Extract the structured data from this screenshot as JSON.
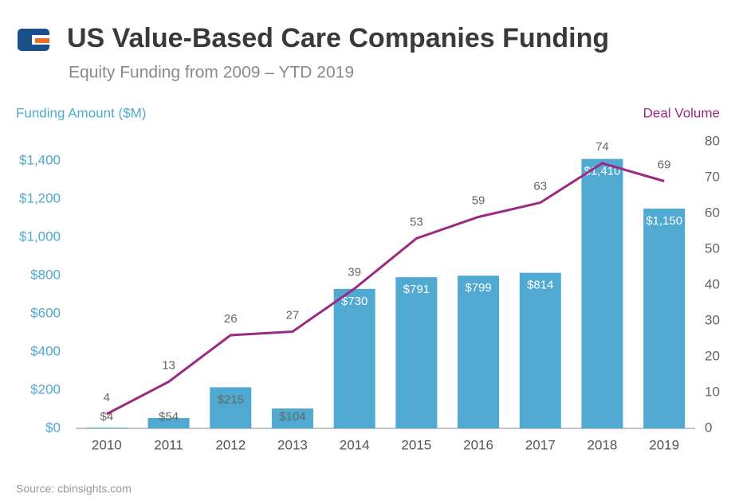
{
  "chart_data": {
    "type": "combo",
    "title": "US Value-Based Care Companies Funding",
    "subtitle": "Equity Funding from 2009 – YTD 2019",
    "y_label": "Funding Amount ($M)",
    "y2_label": "Deal Volume",
    "source": "Source: cbinsights.com",
    "categories": [
      "2010",
      "2011",
      "2012",
      "2013",
      "2014",
      "2015",
      "2016",
      "2017",
      "2018",
      "2019"
    ],
    "series": [
      {
        "type": "bar",
        "color": "#4fa9d0",
        "values": [
          4,
          54,
          215,
          104,
          730,
          791,
          799,
          814,
          1410,
          1150
        ],
        "value_labels": [
          "$4",
          "$54",
          "$215",
          "$104",
          "$730",
          "$791",
          "$799",
          "$814",
          "$1,410",
          "$1,150"
        ]
      },
      {
        "type": "line",
        "axis": "y2",
        "color": "#9b2a82",
        "values": [
          4,
          13,
          26,
          27,
          39,
          53,
          59,
          63,
          74,
          69
        ]
      }
    ],
    "ylim": [
      0,
      1500
    ],
    "yticks": [
      {
        "value": 0,
        "label": "$0"
      },
      {
        "value": 200,
        "label": "$200"
      },
      {
        "value": 400,
        "label": "$400"
      },
      {
        "value": 600,
        "label": "$600"
      },
      {
        "value": 800,
        "label": "$800"
      },
      {
        "value": 1000,
        "label": "$1,000"
      },
      {
        "value": 1200,
        "label": "$1,200"
      },
      {
        "value": 1400,
        "label": "$1,400"
      }
    ],
    "y2lim": [
      0,
      80
    ],
    "y2ticks": [
      0,
      10,
      20,
      30,
      40,
      50,
      60,
      70,
      80
    ]
  }
}
